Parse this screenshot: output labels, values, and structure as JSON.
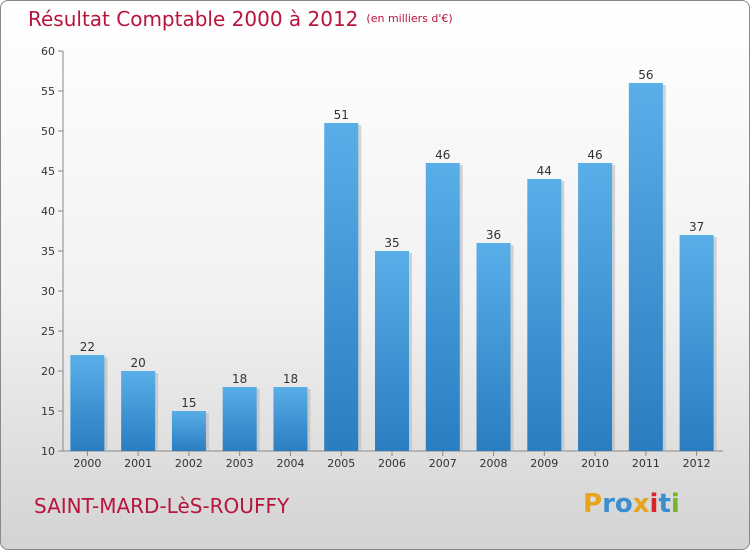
{
  "header": {
    "title": "Résultat Comptable 2000 à 2012",
    "subtitle": "(en milliers d'€)"
  },
  "footer": {
    "commune": "SAINT-MARD-LèS-ROUFFY",
    "logo_text": "Proxiti"
  },
  "colors": {
    "title": "#b8143c",
    "bar_top": "#5aaee8",
    "bar_bottom": "#2a7dc0",
    "logo": [
      "#e8a31f",
      "#3b8fd1",
      "#3b8fd1",
      "#e8a31f",
      "#d6242c",
      "#3b8fd1",
      "#7ab42c"
    ]
  },
  "chart_data": {
    "type": "bar",
    "categories": [
      "2000",
      "2001",
      "2002",
      "2003",
      "2004",
      "2005",
      "2006",
      "2007",
      "2008",
      "2009",
      "2010",
      "2011",
      "2012"
    ],
    "values": [
      22,
      20,
      15,
      18,
      18,
      51,
      35,
      46,
      36,
      44,
      46,
      56,
      37
    ],
    "ylim": [
      10,
      60
    ],
    "yticks": [
      10,
      15,
      20,
      25,
      30,
      35,
      40,
      45,
      50,
      55,
      60
    ],
    "grid": false,
    "legend": "none"
  }
}
